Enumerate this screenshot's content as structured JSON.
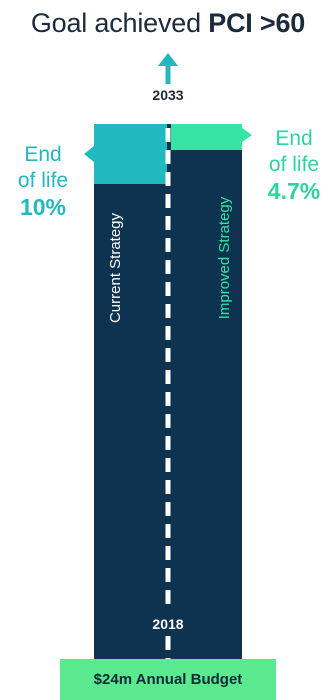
{
  "title": {
    "prefix": "Goal achieved ",
    "highlight": "PCI >60"
  },
  "timeline": {
    "start_year": "2018",
    "end_year": "2033"
  },
  "current": {
    "label": "Current Strategy",
    "end_of_life_line1": "End",
    "end_of_life_line2": "of life",
    "percent": "10%",
    "color": "#22b8bf"
  },
  "improved": {
    "label": "Improved Strategy",
    "end_of_life_line1": "End",
    "end_of_life_line2": "of life",
    "percent": "4.7%",
    "color": "#35e3a4"
  },
  "budget": {
    "label": "$24m Annual Budget",
    "color": "#5ae98e"
  },
  "colors": {
    "dark_column": "#0d3350",
    "arrow_teal": "#22b8bf",
    "title_text": "#1b2b3c"
  }
}
